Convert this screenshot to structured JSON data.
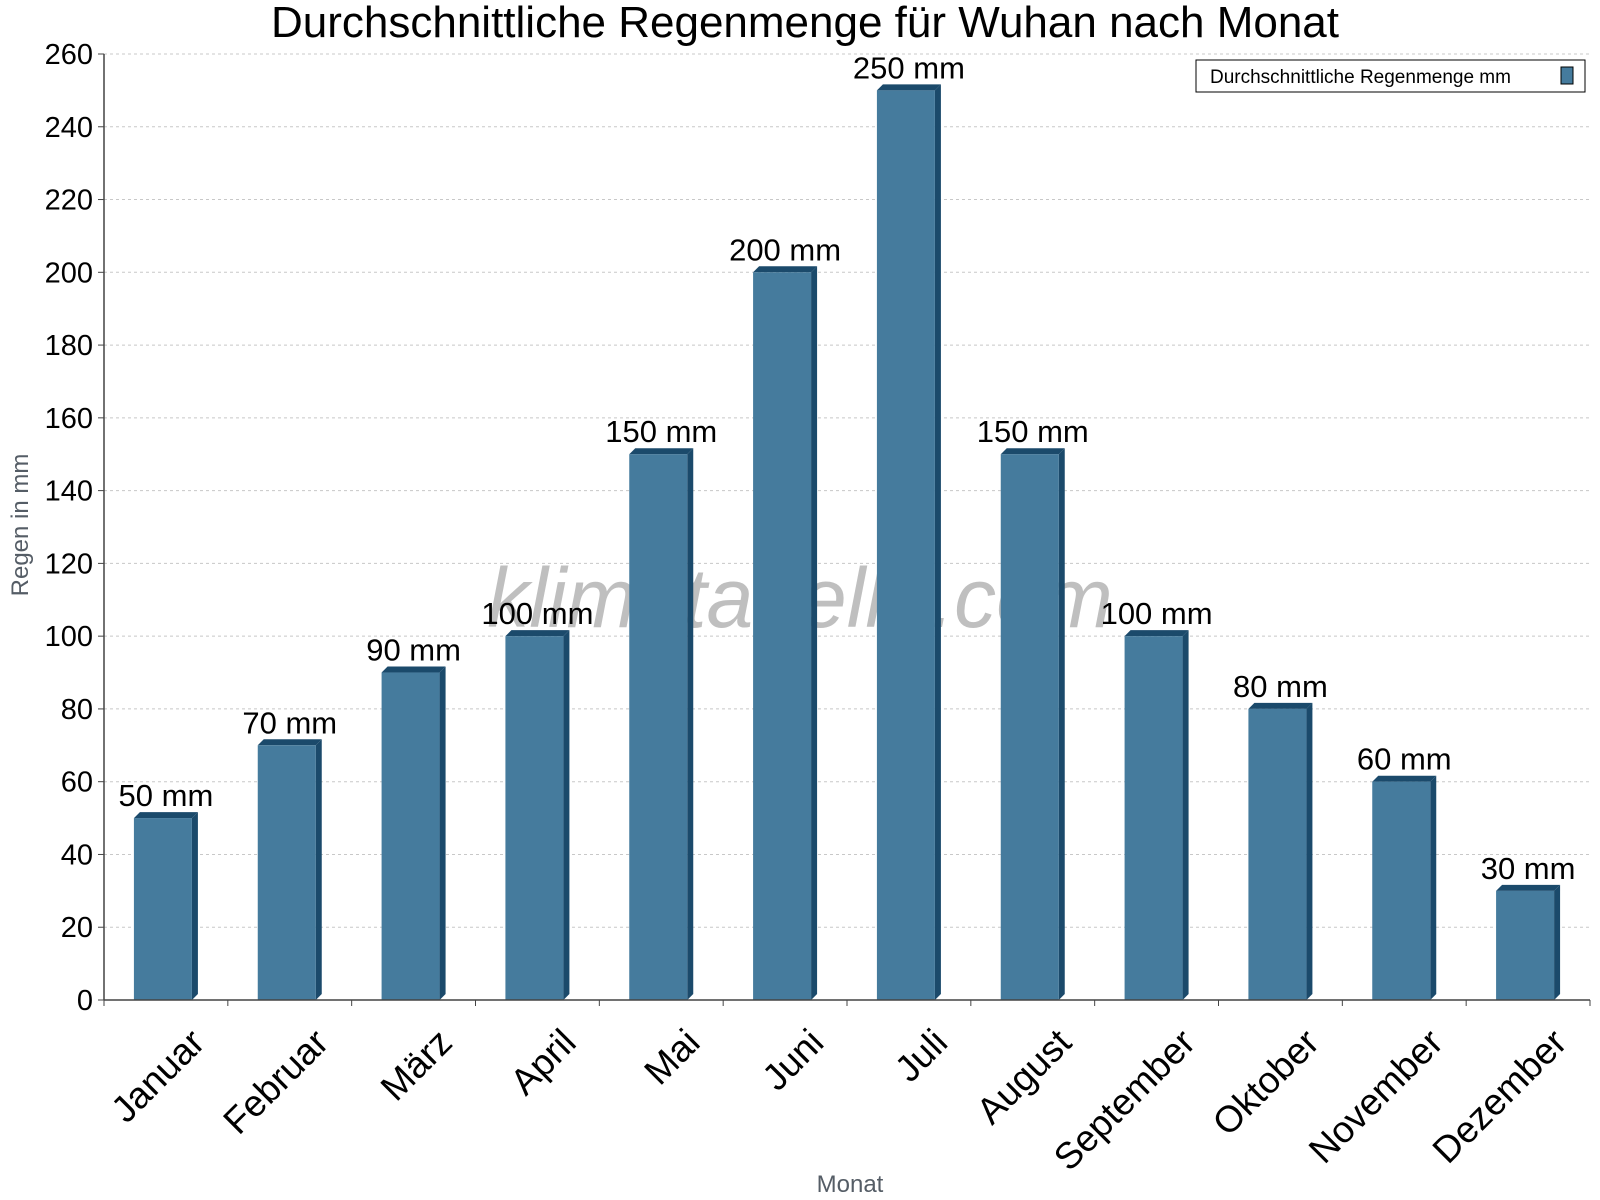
{
  "chart_data": {
    "type": "bar",
    "title": "Durchschnittliche Regenmenge für Wuhan nach Monat",
    "xlabel": "Monat",
    "ylabel": "Regen in mm",
    "categories": [
      "Januar",
      "Februar",
      "März",
      "April",
      "Mai",
      "Juni",
      "Juli",
      "August",
      "September",
      "Oktober",
      "November",
      "Dezember"
    ],
    "series": [
      {
        "name": "Durchschnittliche Regenmenge mm",
        "values": [
          50,
          70,
          90,
          100,
          150,
          200,
          250,
          150,
          100,
          80,
          60,
          30
        ],
        "color": "#457b9d"
      }
    ],
    "data_labels": [
      "50 mm",
      "70 mm",
      "90 mm",
      "100 mm",
      "150 mm",
      "200 mm",
      "250 mm",
      "150 mm",
      "100 mm",
      "80 mm",
      "60 mm",
      "30 mm"
    ],
    "ylim": [
      0,
      260
    ],
    "yticks": [
      0,
      20,
      40,
      60,
      80,
      100,
      120,
      140,
      160,
      180,
      200,
      220,
      240,
      260
    ],
    "grid": true,
    "legend_position": "top-right",
    "watermark": "klimatabelle.com",
    "colors": {
      "bar_front": "#457b9d",
      "bar_side": "#1b4a6b",
      "bar_top": "#1b4a6b",
      "grid": "#c8c8c8"
    }
  }
}
